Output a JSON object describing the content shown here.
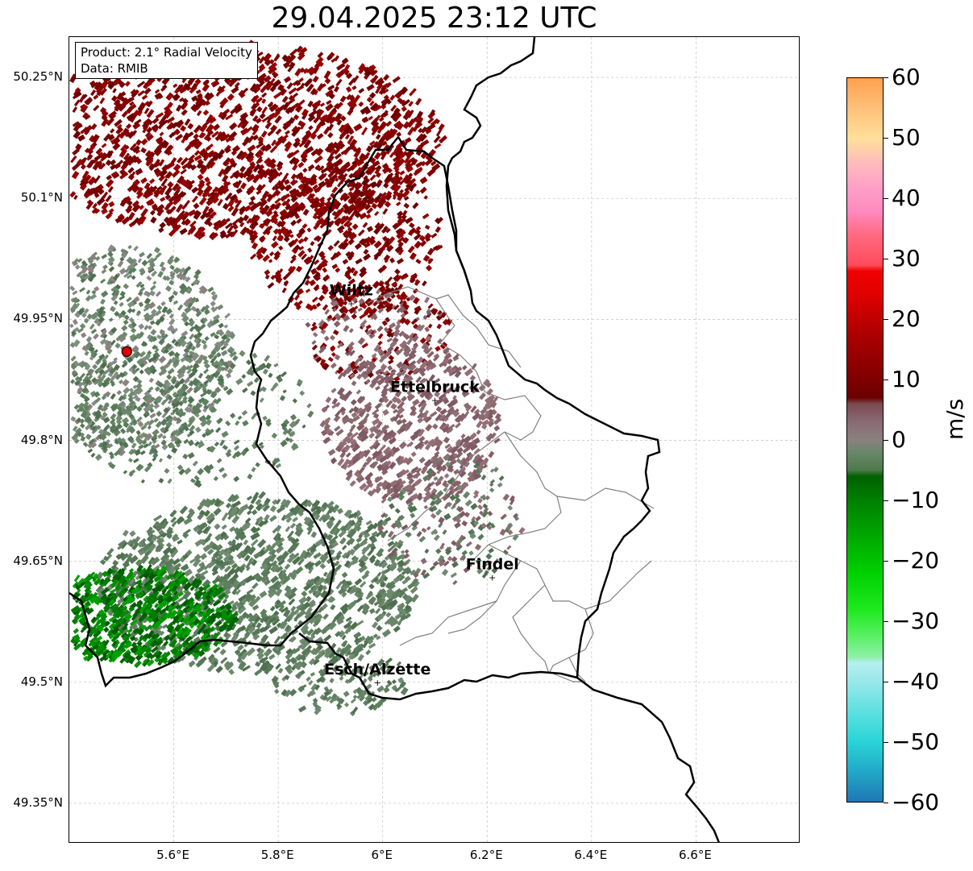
{
  "title": "29.04.2025 23:12 UTC",
  "info_box": {
    "product": "Product: 2.1° Radial Velocity",
    "data": "Data: RMIB"
  },
  "lat_ticks": [
    "50.25°N",
    "50.1°N",
    "49.95°N",
    "49.8°N",
    "49.65°N",
    "49.5°N",
    "49.35°N"
  ],
  "lon_ticks": [
    "5.6°E",
    "5.8°E",
    "6°E",
    "6.2°E",
    "6.4°E",
    "6.6°E"
  ],
  "colorbar": {
    "unit": "m/s",
    "ticks": [
      "60",
      "50",
      "40",
      "30",
      "20",
      "10",
      "0",
      "−10",
      "−20",
      "−30",
      "−40",
      "−50",
      "−60"
    ],
    "range": [
      -60,
      60
    ]
  },
  "cities": [
    {
      "name": "Wiltz",
      "lon": 5.94,
      "lat": 49.97
    },
    {
      "name": "Ettelbruck",
      "lon": 6.1,
      "lat": 49.85
    },
    {
      "name": "Findel",
      "lon": 6.21,
      "lat": 49.63
    },
    {
      "name": "Esch/Alzette",
      "lon": 5.99,
      "lat": 49.5
    }
  ],
  "radar_site": {
    "lon": 5.51,
    "lat": 49.91
  },
  "map_extent": {
    "lon": [
      5.4,
      6.8
    ],
    "lat": [
      49.3,
      50.3
    ]
  },
  "palette": {
    "border": "#000000",
    "canton": "#808080",
    "grid": "#c0c0c0",
    "radar_marker": "#e00000",
    "outbound": "#7a0000",
    "inbound": "#006400",
    "near_zero_neg": "#5f7f5f",
    "near_zero_pos": "#8a6a70"
  }
}
